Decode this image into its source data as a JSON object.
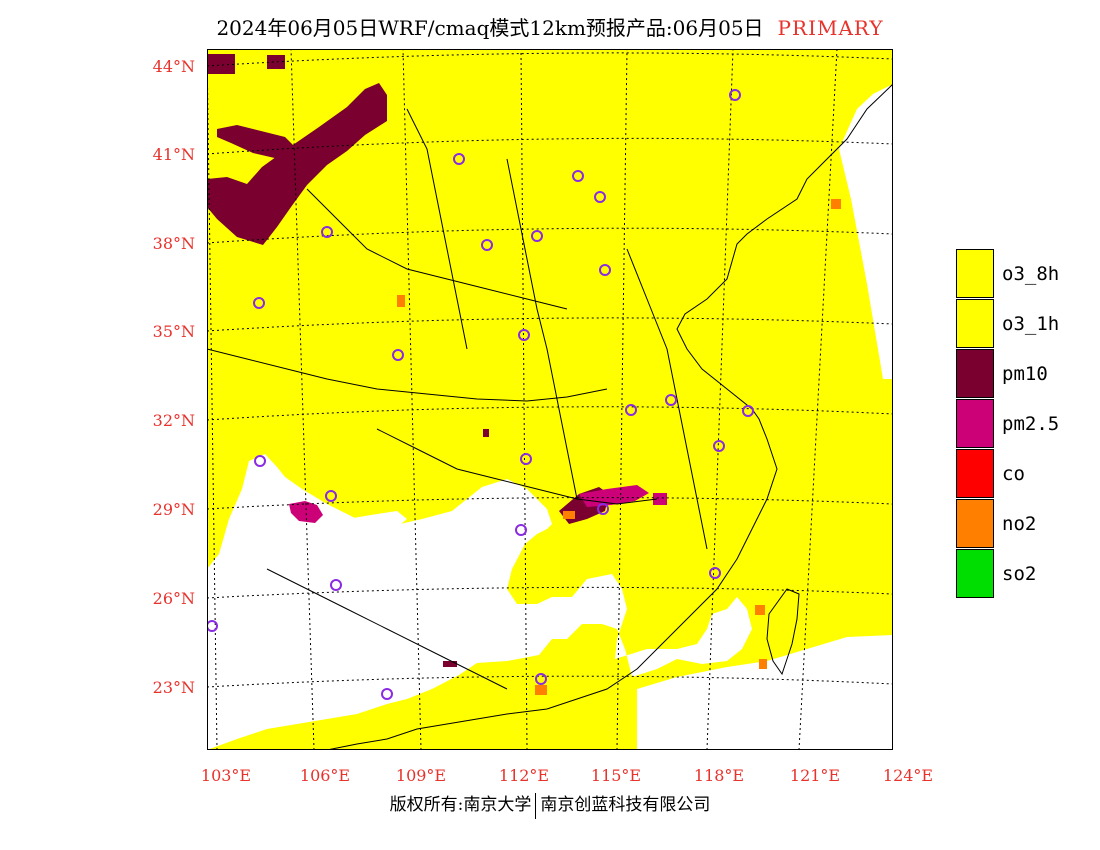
{
  "header": {
    "title": "2024年06月05日WRF/cmaq模式12km预报产品:06月05日",
    "tag": "PRIMARY"
  },
  "axes": {
    "lat_labels": [
      "44°N",
      "41°N",
      "38°N",
      "35°N",
      "32°N",
      "29°N",
      "26°N",
      "23°N"
    ],
    "lon_labels": [
      "103°E",
      "106°E",
      "109°E",
      "112°E",
      "115°E",
      "118°E",
      "121°E",
      "124°E"
    ]
  },
  "legend": {
    "items": [
      {
        "label": "o3_8h",
        "color": "#ffff00"
      },
      {
        "label": "o3_1h",
        "color": "#ffff00"
      },
      {
        "label": "pm10",
        "color": "#7a0030"
      },
      {
        "label": "pm2.5",
        "color": "#cc0077"
      },
      {
        "label": "co",
        "color": "#ff0000"
      },
      {
        "label": "no2",
        "color": "#ff7f00"
      },
      {
        "label": "so2",
        "color": "#00dd00"
      }
    ]
  },
  "colors": {
    "o3": "#ffff00",
    "pm10": "#7a0030",
    "pm25": "#cc0077",
    "no2": "#ff7f00",
    "clean": "#ffffff",
    "station_ring": "#8a2be2",
    "axis_label": "#e8322c"
  },
  "footer": {
    "left": "版权所有:南京大学",
    "right": "南京创蓝科技有限公司"
  }
}
